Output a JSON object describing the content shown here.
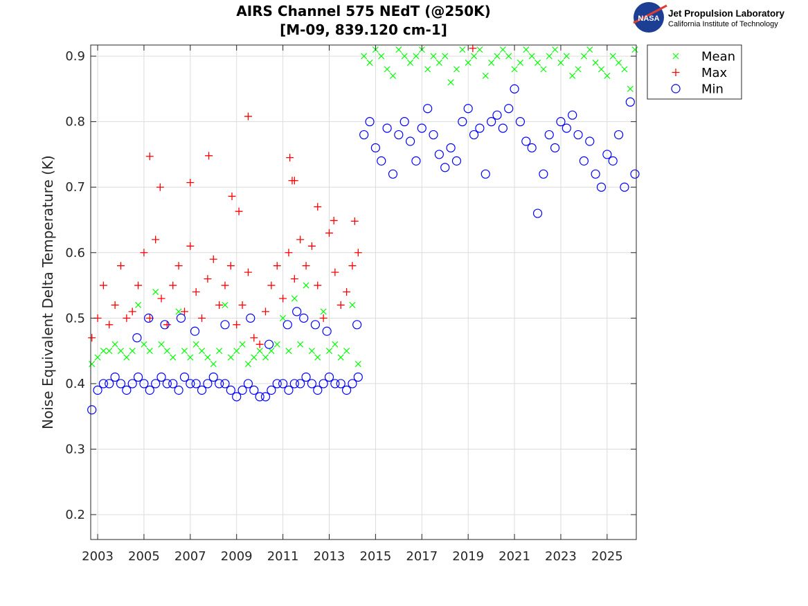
{
  "logo": {
    "agency": "NASA",
    "line1": "Jet Propulsion Laboratory",
    "line2": "California Institute of Technology"
  },
  "chart_data": {
    "type": "scatter",
    "title": [
      "AIRS Channel 575 NEdT (@250K)",
      "[M-09, 839.120 cm-1]"
    ],
    "xlabel": "",
    "ylabel": "Noise Equivalent Delta Temperature (K)",
    "xlim": [
      2002.7,
      2026.26
    ],
    "ylim": [
      0.162,
      0.917
    ],
    "xticks": [
      2003,
      2005,
      2007,
      2009,
      2011,
      2013,
      2015,
      2017,
      2019,
      2021,
      2023,
      2025
    ],
    "xtick_labels": [
      "2003",
      "2005",
      "2007",
      "2009",
      "2011",
      "2013",
      "2015",
      "2017",
      "2019",
      "2021",
      "2023",
      "2025"
    ],
    "yticks": [
      0.2,
      0.3,
      0.4,
      0.5,
      0.6,
      0.7,
      0.8,
      0.9
    ],
    "ytick_labels": [
      "0.2",
      "0.3",
      "0.4",
      "0.5",
      "0.6",
      "0.7",
      "0.8",
      "0.9"
    ],
    "grid": true,
    "legend_position": "outside-top-right",
    "series": [
      {
        "name": "Mean",
        "marker": "x",
        "color": "#00ff00",
        "x": [
          2002.75,
          2003,
          2003.25,
          2003.5,
          2003.75,
          2004,
          2004.25,
          2004.5,
          2004.75,
          2005,
          2005.25,
          2005.5,
          2005.75,
          2006,
          2006.25,
          2006.5,
          2006.75,
          2007,
          2007.25,
          2007.5,
          2007.75,
          2008,
          2008.25,
          2008.5,
          2008.75,
          2009,
          2009.25,
          2009.5,
          2009.75,
          2010,
          2010.25,
          2010.5,
          2010.75,
          2011,
          2011.25,
          2011.5,
          2011.75,
          2012,
          2012.25,
          2012.5,
          2012.75,
          2013,
          2013.25,
          2013.5,
          2013.75,
          2014,
          2014.25,
          2014.5,
          2014.75,
          2015,
          2015.25,
          2015.5,
          2015.75,
          2016,
          2016.25,
          2016.5,
          2016.75,
          2017,
          2017.25,
          2017.5,
          2017.75,
          2018,
          2018.25,
          2018.5,
          2018.75,
          2019,
          2019.25,
          2019.5,
          2019.75,
          2020,
          2020.25,
          2020.5,
          2020.75,
          2021,
          2021.25,
          2021.5,
          2021.75,
          2022,
          2022.25,
          2022.5,
          2022.75,
          2023,
          2023.25,
          2023.5,
          2023.75,
          2024,
          2024.25,
          2024.5,
          2024.75,
          2025,
          2025.25,
          2025.5,
          2025.75,
          2026,
          2026.2
        ],
        "y": [
          0.43,
          0.44,
          0.45,
          0.45,
          0.46,
          0.45,
          0.44,
          0.45,
          0.52,
          0.46,
          0.45,
          0.54,
          0.46,
          0.45,
          0.44,
          0.51,
          0.45,
          0.44,
          0.46,
          0.45,
          0.44,
          0.43,
          0.45,
          0.52,
          0.44,
          0.45,
          0.46,
          0.43,
          0.44,
          0.45,
          0.44,
          0.45,
          0.46,
          0.5,
          0.45,
          0.53,
          0.46,
          0.55,
          0.45,
          0.44,
          0.51,
          0.45,
          0.46,
          0.44,
          0.45,
          0.52,
          0.43,
          0.9,
          0.89,
          0.91,
          0.9,
          0.88,
          0.87,
          0.91,
          0.9,
          0.89,
          0.9,
          0.91,
          0.88,
          0.9,
          0.89,
          0.9,
          0.86,
          0.88,
          0.91,
          0.89,
          0.9,
          0.91,
          0.87,
          0.89,
          0.9,
          0.91,
          0.9,
          0.88,
          0.89,
          0.91,
          0.9,
          0.89,
          0.88,
          0.9,
          0.91,
          0.89,
          0.9,
          0.87,
          0.88,
          0.9,
          0.91,
          0.89,
          0.88,
          0.87,
          0.9,
          0.89,
          0.88,
          0.85,
          0.91
        ]
      },
      {
        "name": "Max",
        "marker": "+",
        "color": "#ff0000",
        "x": [
          2002.75,
          2003,
          2003.25,
          2003.5,
          2003.75,
          2004,
          2004.25,
          2004.5,
          2004.75,
          2005,
          2005.25,
          2005.5,
          2005.75,
          2006,
          2006.25,
          2006.5,
          2006.75,
          2007,
          2007.25,
          2007.5,
          2007.75,
          2008,
          2008.25,
          2008.5,
          2008.75,
          2009,
          2009.25,
          2009.5,
          2009.75,
          2010,
          2010.25,
          2010.5,
          2010.75,
          2011,
          2011.25,
          2011.5,
          2011.75,
          2012,
          2012.25,
          2012.5,
          2012.75,
          2013,
          2013.25,
          2013.5,
          2013.75,
          2014,
          2014.25,
          2005.25,
          2005.7,
          2007.0,
          2007.8,
          2008.8,
          2009.1,
          2009.5,
          2011.3,
          2011.4,
          2011.5,
          2012.5,
          2013.2,
          2014.1,
          2019.2
        ],
        "y": [
          0.47,
          0.5,
          0.55,
          0.49,
          0.52,
          0.58,
          0.5,
          0.51,
          0.55,
          0.6,
          0.5,
          0.62,
          0.53,
          0.49,
          0.55,
          0.58,
          0.51,
          0.61,
          0.54,
          0.5,
          0.56,
          0.59,
          0.52,
          0.55,
          0.58,
          0.49,
          0.52,
          0.57,
          0.47,
          0.46,
          0.51,
          0.55,
          0.58,
          0.53,
          0.6,
          0.56,
          0.62,
          0.58,
          0.61,
          0.55,
          0.5,
          0.63,
          0.57,
          0.52,
          0.54,
          0.58,
          0.6,
          0.747,
          0.7,
          0.707,
          0.748,
          0.686,
          0.663,
          0.808,
          0.745,
          0.71,
          0.71,
          0.67,
          0.649,
          0.648,
          0.912
        ]
      },
      {
        "name": "Min",
        "marker": "o",
        "color": "#0000ff",
        "x": [
          2002.75,
          2003,
          2003.25,
          2003.5,
          2003.75,
          2004,
          2004.25,
          2004.5,
          2004.75,
          2005,
          2005.25,
          2005.5,
          2005.75,
          2006,
          2006.25,
          2006.5,
          2006.75,
          2007,
          2007.25,
          2007.5,
          2007.75,
          2008,
          2008.25,
          2008.5,
          2008.75,
          2009,
          2009.25,
          2009.5,
          2009.75,
          2010,
          2010.25,
          2010.5,
          2010.75,
          2011,
          2011.25,
          2011.5,
          2011.75,
          2012,
          2012.25,
          2012.5,
          2012.75,
          2013,
          2013.25,
          2013.5,
          2013.75,
          2014,
          2014.25,
          2004.7,
          2005.2,
          2005.9,
          2006.6,
          2007.2,
          2008.5,
          2009.6,
          2010.4,
          2011.2,
          2011.6,
          2011.9,
          2012.4,
          2012.9,
          2014.2,
          2014.5,
          2014.75,
          2015,
          2015.25,
          2015.5,
          2015.75,
          2016,
          2016.25,
          2016.5,
          2016.75,
          2017,
          2017.25,
          2017.5,
          2017.75,
          2018,
          2018.25,
          2018.5,
          2018.75,
          2019,
          2019.25,
          2019.5,
          2019.75,
          2020,
          2020.25,
          2020.5,
          2020.75,
          2021,
          2021.25,
          2021.5,
          2021.75,
          2022,
          2022.25,
          2022.5,
          2022.75,
          2023,
          2023.25,
          2023.5,
          2023.75,
          2024,
          2024.25,
          2024.5,
          2024.75,
          2025,
          2025.25,
          2025.5,
          2025.75,
          2026,
          2026.2
        ],
        "y": [
          0.36,
          0.39,
          0.4,
          0.4,
          0.41,
          0.4,
          0.39,
          0.4,
          0.41,
          0.4,
          0.39,
          0.4,
          0.41,
          0.4,
          0.4,
          0.39,
          0.41,
          0.4,
          0.4,
          0.39,
          0.4,
          0.41,
          0.4,
          0.4,
          0.39,
          0.38,
          0.39,
          0.4,
          0.39,
          0.38,
          0.38,
          0.39,
          0.4,
          0.4,
          0.39,
          0.4,
          0.4,
          0.41,
          0.4,
          0.39,
          0.4,
          0.41,
          0.4,
          0.4,
          0.39,
          0.4,
          0.41,
          0.47,
          0.5,
          0.49,
          0.5,
          0.48,
          0.49,
          0.5,
          0.46,
          0.49,
          0.51,
          0.5,
          0.49,
          0.48,
          0.49,
          0.78,
          0.8,
          0.76,
          0.74,
          0.79,
          0.72,
          0.78,
          0.8,
          0.77,
          0.74,
          0.79,
          0.82,
          0.78,
          0.75,
          0.73,
          0.76,
          0.74,
          0.8,
          0.82,
          0.78,
          0.79,
          0.72,
          0.8,
          0.81,
          0.79,
          0.82,
          0.85,
          0.8,
          0.77,
          0.76,
          0.66,
          0.72,
          0.78,
          0.76,
          0.8,
          0.79,
          0.81,
          0.78,
          0.74,
          0.77,
          0.72,
          0.7,
          0.75,
          0.74,
          0.78,
          0.7,
          0.83,
          0.72
        ]
      }
    ]
  }
}
